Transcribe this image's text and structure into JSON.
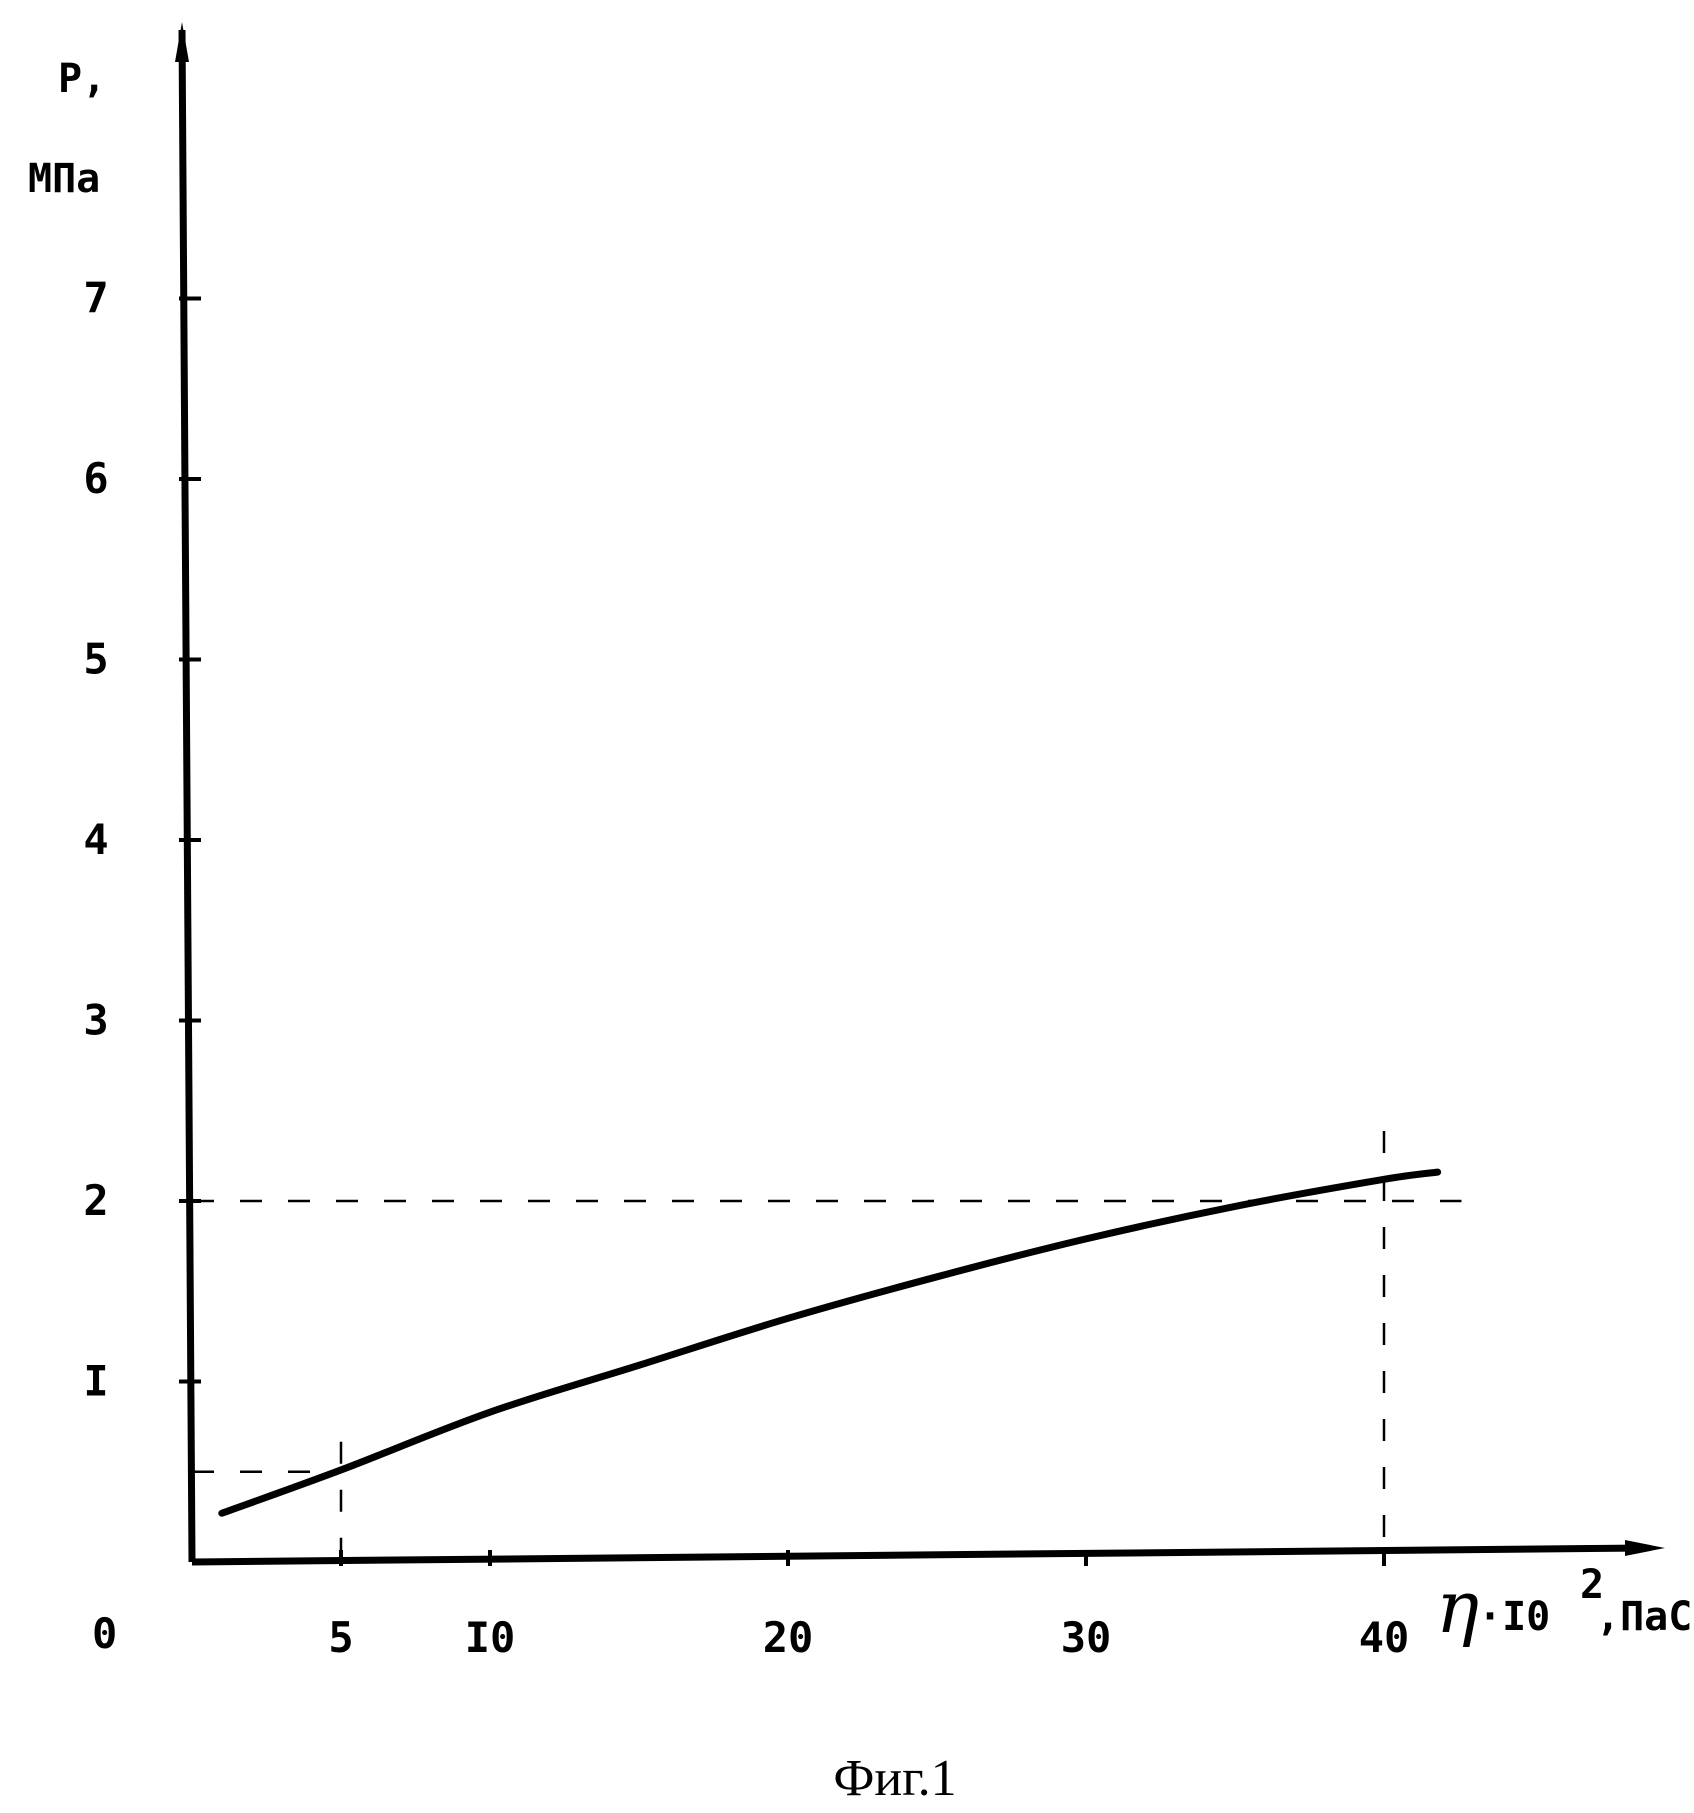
{
  "chart_data": {
    "type": "line",
    "ylabel_line1": "P,",
    "ylabel_line2": "МПа",
    "xlabel_symbol": "η",
    "xlabel_rest": "·I0",
    "xlabel_exp": "2",
    "xlabel_unit": ",ПаС",
    "caption": "Фиг.1",
    "origin_label": "0",
    "xlim": [
      0,
      49
    ],
    "ylim": [
      0,
      8
    ],
    "x_ticks": [
      {
        "value": 5,
        "label": "5"
      },
      {
        "value": 10,
        "label": "I0"
      },
      {
        "value": 20,
        "label": "20"
      },
      {
        "value": 30,
        "label": "30"
      },
      {
        "value": 40,
        "label": "40"
      }
    ],
    "y_ticks": [
      {
        "value": 1,
        "label": "I"
      },
      {
        "value": 2,
        "label": "2"
      },
      {
        "value": 3,
        "label": "3"
      },
      {
        "value": 4,
        "label": "4"
      },
      {
        "value": 5,
        "label": "5"
      },
      {
        "value": 6,
        "label": "6"
      },
      {
        "value": 7,
        "label": "7"
      }
    ],
    "series": [
      {
        "points": [
          [
            1.0,
            0.27
          ],
          [
            5.0,
            0.51
          ],
          [
            10.0,
            0.83
          ],
          [
            15.0,
            1.09
          ],
          [
            20.0,
            1.35
          ],
          [
            25.0,
            1.58
          ],
          [
            30.0,
            1.79
          ],
          [
            35.0,
            1.97
          ],
          [
            40.0,
            2.12
          ],
          [
            41.8,
            2.16
          ]
        ]
      }
    ],
    "reference_lines": [
      {
        "x": 5,
        "y": 0.5
      },
      {
        "x": 40,
        "y": 2.0
      }
    ],
    "grid": false,
    "legend": "none"
  }
}
